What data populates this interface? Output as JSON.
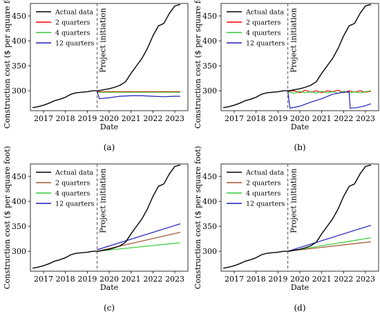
{
  "x_label": "Date",
  "y_label": "Construction cost ($ per square foot)",
  "annotation": "Project initiation",
  "project_initiation_x": 2019.45,
  "xlim": [
    2016.4,
    2023.6
  ],
  "ylim": [
    260,
    475
  ],
  "xticks": [
    2017,
    2018,
    2019,
    2020,
    2021,
    2022,
    2023
  ],
  "yticks": [
    300,
    350,
    400,
    450
  ],
  "colors": {
    "actual": "#000000",
    "q2": [
      "#ff0000",
      "#a0522d"
    ],
    "q4": "#33cc33",
    "q12": "#1f1fbf",
    "projection_line": "#555555"
  },
  "legend": [
    "Actual data",
    "2 quarters",
    "4 quarters",
    "12 quarters"
  ],
  "actual_data": {
    "x": [
      2016.5,
      2016.75,
      2017.0,
      2017.25,
      2017.5,
      2017.75,
      2018.0,
      2018.25,
      2018.5,
      2018.75,
      2019.0,
      2019.25,
      2019.5,
      2019.75,
      2020.0,
      2020.25,
      2020.5,
      2020.75,
      2021.0,
      2021.25,
      2021.5,
      2021.75,
      2022.0,
      2022.25,
      2022.5,
      2022.75,
      2023.0,
      2023.25
    ],
    "y": [
      266,
      268,
      271,
      275,
      280,
      283,
      287,
      293,
      296,
      297,
      298,
      300,
      300,
      302,
      304,
      307,
      311,
      318,
      335,
      350,
      365,
      385,
      410,
      430,
      435,
      455,
      470,
      473
    ]
  },
  "chart_data": [
    {
      "type": "line",
      "panel": "(a)",
      "series": [
        {
          "name": "Actual data",
          "ref": "actual_data"
        },
        {
          "name": "2 quarters",
          "x": [
            2019.45,
            2023.25
          ],
          "y": [
            298,
            298
          ]
        },
        {
          "name": "4 quarters",
          "x": [
            2019.45,
            2023.25
          ],
          "y": [
            297,
            297
          ]
        },
        {
          "name": "12 quarters",
          "x": [
            2019.45,
            2019.55,
            2020.0,
            2020.5,
            2021.0,
            2021.5,
            2022.0,
            2022.5,
            2023.0,
            2023.25
          ],
          "y": [
            299,
            284,
            286,
            289,
            290,
            290,
            289,
            288,
            289,
            289
          ]
        }
      ]
    },
    {
      "type": "line",
      "panel": "(b)",
      "series": [
        {
          "name": "Actual data",
          "ref": "actual_data"
        },
        {
          "name": "2 quarters",
          "x": [
            2019.45,
            2019.75,
            2020.0,
            2020.25,
            2020.5,
            2020.75,
            2021.0,
            2021.25,
            2021.5,
            2021.75,
            2022.0,
            2022.25,
            2022.5,
            2022.75,
            2023.0,
            2023.25
          ],
          "y": [
            299,
            300,
            296,
            301,
            297,
            300,
            296,
            300,
            298,
            301,
            296,
            300,
            297,
            300,
            297,
            299
          ]
        },
        {
          "name": "4 quarters",
          "x": [
            2019.45,
            2019.75,
            2020.0,
            2020.25,
            2020.5,
            2020.75,
            2021.0,
            2021.25,
            2021.5,
            2021.75,
            2022.0,
            2022.25,
            2022.5,
            2022.75,
            2023.0,
            2023.25
          ],
          "y": [
            298,
            295,
            299,
            296,
            298,
            295,
            299,
            296,
            298,
            295,
            299,
            296,
            298,
            296,
            298,
            300
          ]
        },
        {
          "name": "12 quarters",
          "x": [
            2019.45,
            2019.55,
            2020.0,
            2020.5,
            2021.0,
            2021.5,
            2022.0,
            2022.25,
            2022.3,
            2022.6,
            2023.0,
            2023.25
          ],
          "y": [
            299,
            265,
            269,
            277,
            284,
            293,
            297,
            298,
            265,
            266,
            270,
            274
          ]
        }
      ]
    },
    {
      "type": "line",
      "panel": "(c)",
      "series": [
        {
          "name": "Actual data",
          "ref": "actual_data"
        },
        {
          "name": "2 quarters",
          "x": [
            2019.45,
            2023.25
          ],
          "y": [
            300,
            338
          ]
        },
        {
          "name": "4 quarters",
          "x": [
            2019.45,
            2023.25
          ],
          "y": [
            300,
            317
          ]
        },
        {
          "name": "12 quarters",
          "x": [
            2019.45,
            2023.25
          ],
          "y": [
            303,
            355
          ]
        }
      ]
    },
    {
      "type": "line",
      "panel": "(d)",
      "series": [
        {
          "name": "Actual data",
          "ref": "actual_data"
        },
        {
          "name": "2 quarters",
          "x": [
            2019.45,
            2023.25
          ],
          "y": [
            300,
            319
          ]
        },
        {
          "name": "4 quarters",
          "x": [
            2019.45,
            2023.25
          ],
          "y": [
            300,
            327
          ]
        },
        {
          "name": "12 quarters",
          "x": [
            2019.45,
            2023.25
          ],
          "y": [
            300,
            352
          ]
        }
      ]
    }
  ]
}
